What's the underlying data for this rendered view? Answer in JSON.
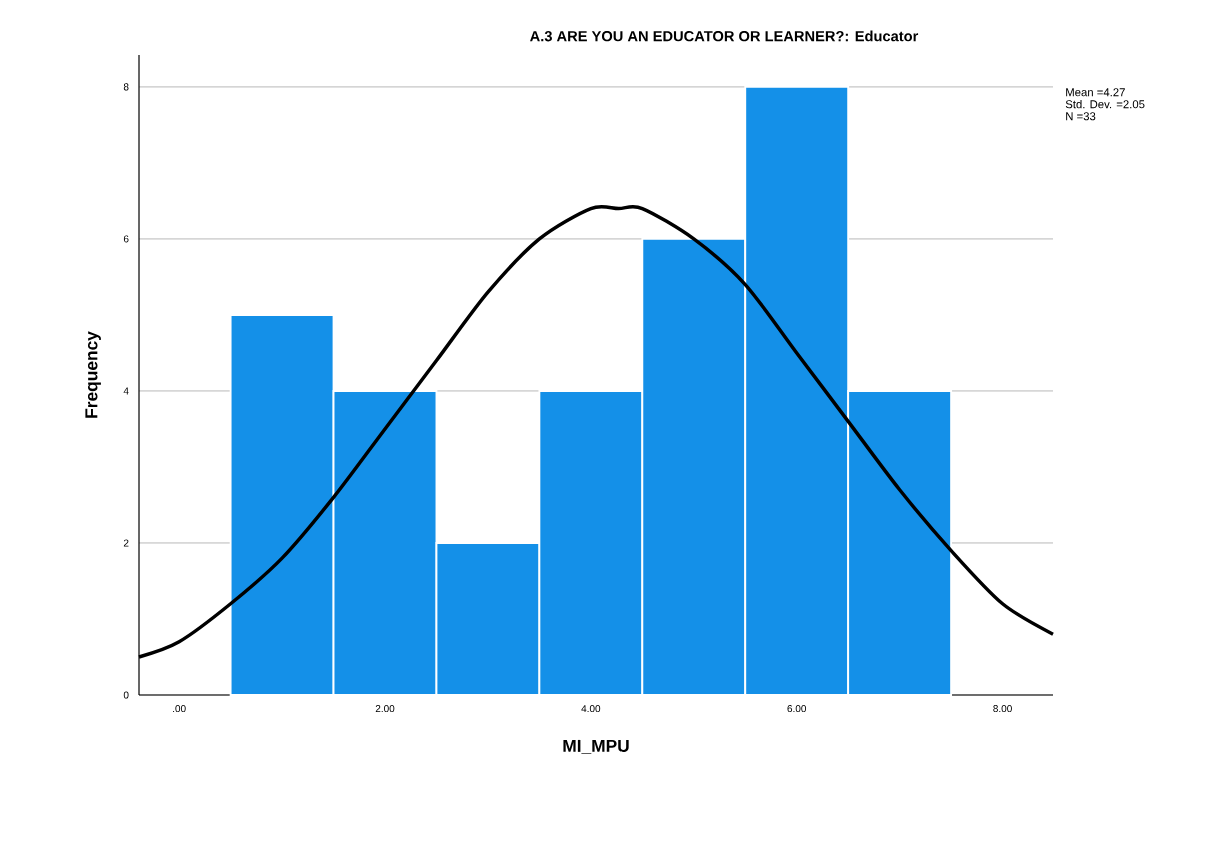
{
  "chart_data": {
    "type": "histogram",
    "title": "A.3 ARE YOU AN EDUCATOR OR LEARNER?: Educator",
    "xlabel": "MI_MPU",
    "ylabel": "Frequency",
    "bins": [
      0.5,
      1.5,
      2.5,
      3.5,
      4.5,
      5.5,
      6.5,
      7.5
    ],
    "values": [
      5,
      4,
      2,
      4,
      6,
      8,
      4
    ],
    "color": "#1490e8",
    "series": [
      {
        "type": "line",
        "color": "#000000",
        "x": [
          -0.39,
          0,
          0.5,
          1,
          1.5,
          2,
          2.5,
          3,
          3.5,
          4,
          4.27,
          4.5,
          5,
          5.5,
          6,
          6.5,
          7,
          7.5,
          8,
          8.49
        ],
        "values": [
          0.5,
          0.7,
          1.2,
          1.8,
          2.6,
          3.5,
          4.4,
          5.3,
          6.0,
          6.4,
          6.4,
          6.4,
          6.0,
          5.4,
          4.5,
          3.6,
          2.7,
          1.9,
          1.2,
          0.8
        ]
      }
    ],
    "xlim": [
      -0.39,
      8.49
    ],
    "ylim": [
      0,
      8.42
    ],
    "xticks": [
      {
        "value": 0,
        "label": ".00"
      },
      {
        "value": 2,
        "label": "2.00"
      },
      {
        "value": 4,
        "label": "4.00"
      },
      {
        "value": 6,
        "label": "6.00"
      },
      {
        "value": 8,
        "label": "8.00"
      }
    ],
    "yticks": [
      0,
      2,
      4,
      6,
      8
    ],
    "grid": "y",
    "annotations": [
      "Mean =4.27",
      "Std. Dev. =2.05",
      "N =33"
    ]
  }
}
